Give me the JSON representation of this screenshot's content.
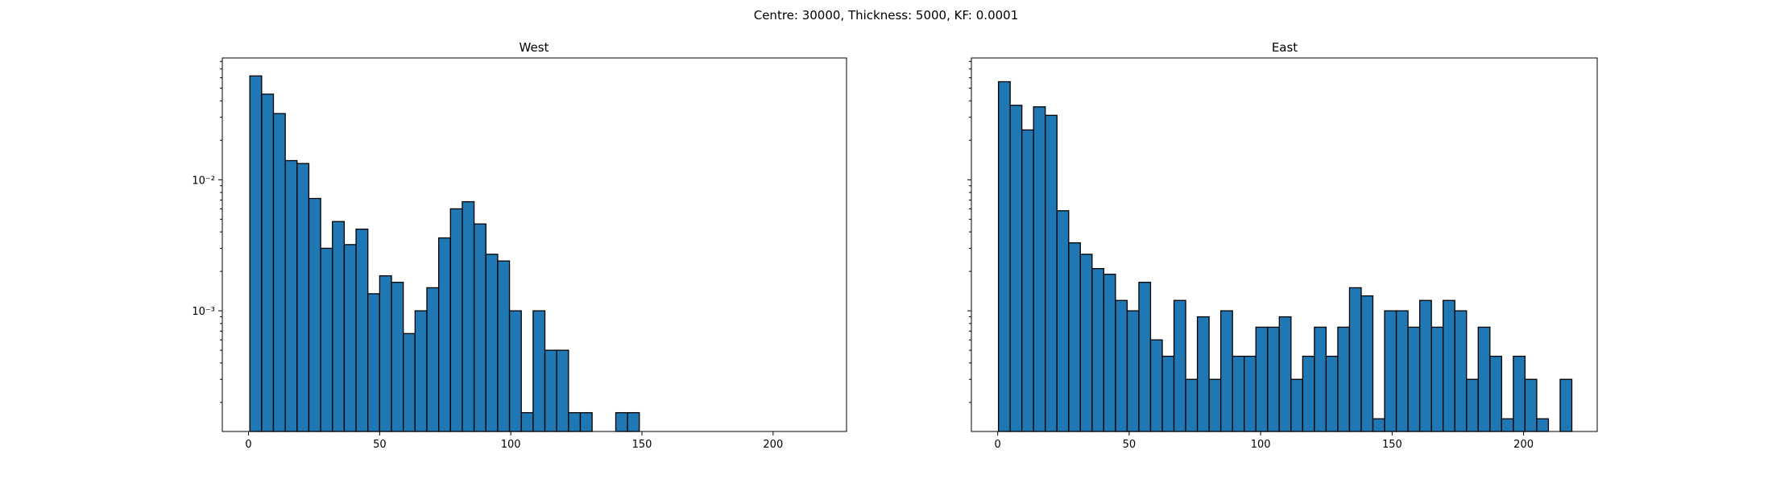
{
  "suptitle": "Centre: 30000, Thickness: 5000, KF: 0.0001",
  "colors": {
    "bar_fill": "#1f77b4",
    "bar_edge": "#000000",
    "axes": "#000000",
    "background": "#ffffff"
  },
  "chart_data": [
    {
      "type": "bar",
      "title": "West",
      "xlabel": "",
      "ylabel": "",
      "yscale": "log",
      "xlim": [
        -10,
        228
      ],
      "ylim": [
        0.00012,
        0.085
      ],
      "xticks": [
        0,
        50,
        100,
        150,
        200
      ],
      "yticks": [
        0.01,
        0.001
      ],
      "ytick_labels": [
        "10⁻²",
        "10⁻³"
      ],
      "bin_width": 4.5,
      "bin_start": 0.5,
      "values": [
        0.062,
        0.045,
        0.032,
        0.014,
        0.0133,
        0.0072,
        0.003,
        0.0048,
        0.0032,
        0.0042,
        0.00135,
        0.00185,
        0.00165,
        0.00067,
        0.001,
        0.0015,
        0.0036,
        0.006,
        0.0068,
        0.0046,
        0.0027,
        0.0024,
        0.001,
        0.000167,
        0.001,
        0.0005,
        0.0005,
        0.000167,
        0.000167,
        0,
        0,
        0.000167,
        0.000167
      ]
    },
    {
      "type": "bar",
      "title": "East",
      "xlabel": "",
      "ylabel": "",
      "yscale": "log",
      "xlim": [
        -10,
        228
      ],
      "ylim": [
        0.00012,
        0.085
      ],
      "xticks": [
        0,
        50,
        100,
        150,
        200
      ],
      "yticks": [],
      "ytick_labels": [],
      "bin_width": 4.45,
      "bin_start": 0.3,
      "values": [
        0.056,
        0.037,
        0.024,
        0.036,
        0.031,
        0.0058,
        0.0033,
        0.0027,
        0.0021,
        0.0019,
        0.0012,
        0.001,
        0.00165,
        0.0006,
        0.00045,
        0.0012,
        0.0003,
        0.0009,
        0.0003,
        0.001,
        0.00045,
        0.00045,
        0.00075,
        0.00075,
        0.0009,
        0.0003,
        0.00045,
        0.00075,
        0.00045,
        0.00075,
        0.0015,
        0.0013,
        0.00015,
        0.001,
        0.001,
        0.00075,
        0.0012,
        0.00075,
        0.0012,
        0.001,
        0.0003,
        0.00075,
        0.00045,
        0.00015,
        0.00045,
        0.0003,
        0.00015,
        0,
        0.0003
      ]
    }
  ]
}
